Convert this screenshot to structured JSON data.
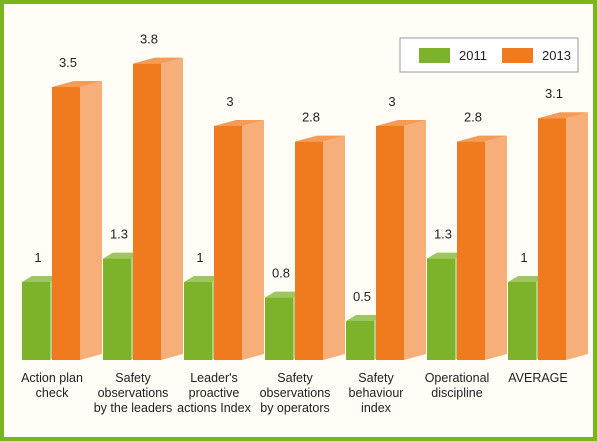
{
  "chart_data": {
    "type": "bar3d",
    "categories": [
      "Action plan\ncheck",
      "Safety\nobservations\nby the leaders",
      "Leader's\nproactive\nactions Index",
      "Safety\nobservations\nby operators",
      "Safety\nbehaviour\nindex",
      "Operational\ndiscipline",
      "AVERAGE"
    ],
    "series": [
      {
        "name": "2011",
        "color": "#7cb32a",
        "values": [
          1,
          1.3,
          1,
          0.8,
          0.5,
          1.3,
          1
        ]
      },
      {
        "name": "2013",
        "color": "#f07a1e",
        "values": [
          3.5,
          3.8,
          3,
          2.8,
          3,
          2.8,
          3.1
        ]
      }
    ],
    "legend": "top-right"
  }
}
